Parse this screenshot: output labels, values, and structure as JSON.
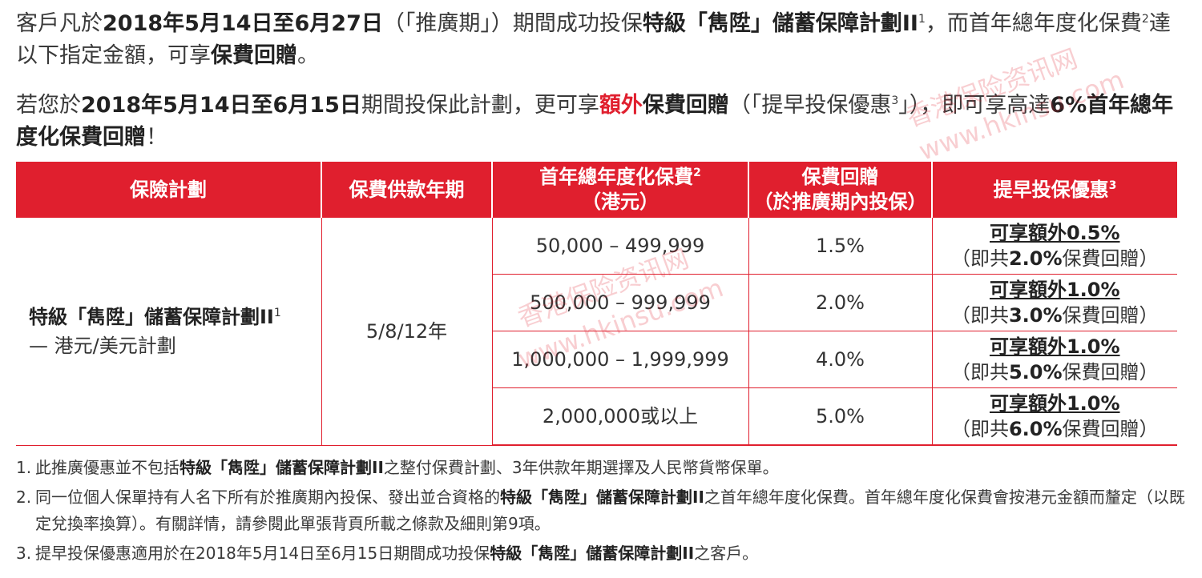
{
  "intro": {
    "p1_a": "客戶凡於",
    "p1_date": "2018年5月14日至6月27日",
    "p1_b": "（「推廣期」）期間成功投保",
    "p1_plan": "特級「雋陞」儲蓄保障計劃II",
    "p1_plan_sup": "1",
    "p1_c": "，而首年總年度化保費",
    "p1_c_sup": "2",
    "p1_d": "達以下指定金額，可享",
    "p1_rebate": "保費回贈",
    "p1_end": "。",
    "p2_a": "若您於",
    "p2_date": "2018年5月14日至6月15日",
    "p2_b": "期間投保此計劃，更可享",
    "p2_extra": "額外",
    "p2_rebate": "保費回贈",
    "p2_c": "（「提早投保優惠",
    "p2_sup": "3",
    "p2_d": "」），即可享高達",
    "p2_max": "6%首年總年度化保費回贈",
    "p2_end": "！"
  },
  "table": {
    "headers": {
      "plan": "保險計劃",
      "term": "保費供款年期",
      "premium_l1": "首年總年度化保費",
      "premium_sup": "2",
      "premium_l2": "（港元）",
      "rebate_l1": "保費回贈",
      "rebate_l2": "（於推廣期內投保）",
      "early": "提早投保優惠",
      "early_sup": "3"
    },
    "plan_name": "特級「雋陞」儲蓄保障計劃II",
    "plan_sup": "1",
    "plan_sub": "— 港元/美元計劃",
    "term": "5/8/12年",
    "rows": [
      {
        "premium": "50,000 – 499,999",
        "rebate": "1.5%",
        "extra": "可享額外0.5%",
        "total_a": "（即共",
        "total_pct": "2.0%",
        "total_b": "保費回贈）"
      },
      {
        "premium": "500,000 – 999,999",
        "rebate": "2.0%",
        "extra": "可享額外1.0%",
        "total_a": "（即共",
        "total_pct": "3.0%",
        "total_b": "保費回贈）"
      },
      {
        "premium": "1,000,000 – 1,999,999",
        "rebate": "4.0%",
        "extra": "可享額外1.0%",
        "total_a": "（即共",
        "total_pct": "5.0%",
        "total_b": "保費回贈）"
      },
      {
        "premium": "2,000,000或以上",
        "rebate": "5.0%",
        "extra": "可享額外1.0%",
        "total_a": "（即共",
        "total_pct": "6.0%",
        "total_b": "保費回贈）"
      }
    ]
  },
  "notes": [
    {
      "num": "1.",
      "a": "此推廣優惠並不包括",
      "plan": "特級「雋陞」儲蓄保障計劃II",
      "b": "之整付保費計劃、3年供款年期選擇及人民幣貨幣保單。"
    },
    {
      "num": "2.",
      "a": "同一位個人保單持有人名下所有於推廣期內投保、發出並合資格的",
      "plan": "特級「雋陞」儲蓄保障計劃II",
      "b": "之首年總年度化保費。首年總年度化保費會按港元金額而釐定（以既定兌換率換算）。有關詳情，請參閱此單張背頁所載之條款及細則第9項。"
    },
    {
      "num": "3.",
      "a": "提早投保優惠適用於在2018年5月14日至6月15日期間成功投保",
      "plan": "特級「雋陞」儲蓄保障計劃II",
      "b": "之客戶。"
    }
  ],
  "watermark": {
    "text_cn": "香港保险资讯网",
    "text_url": "www.hkinsu.com"
  },
  "colors": {
    "accent": "#e01f2e"
  }
}
